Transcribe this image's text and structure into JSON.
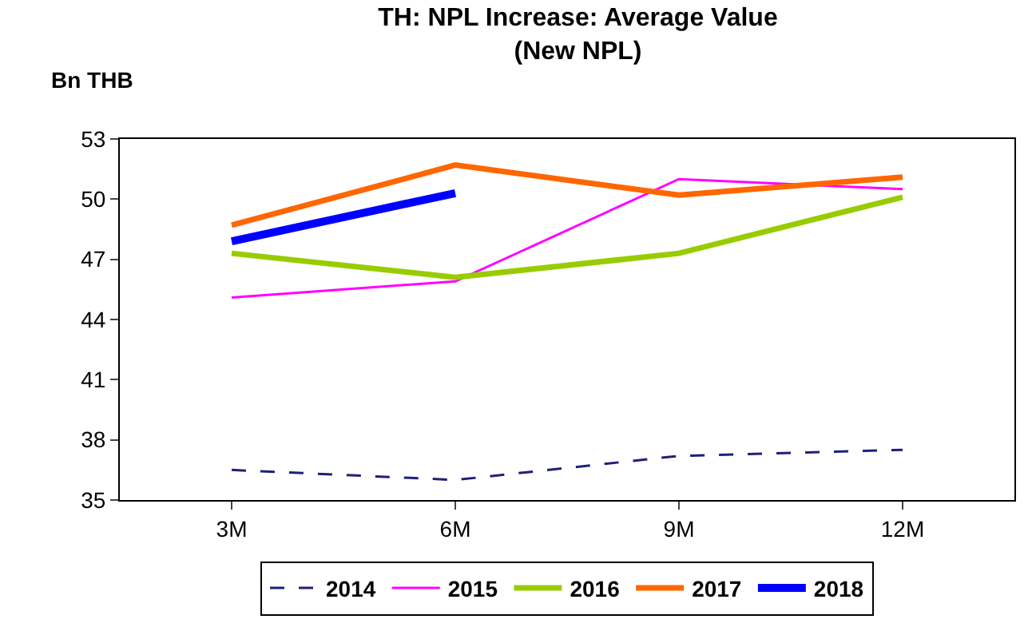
{
  "chart_data": {
    "type": "line",
    "title": "TH: NPL Increase: Average Value\n(New NPL)",
    "ylabel": "Bn THB",
    "categories": [
      "3M",
      "6M",
      "9M",
      "12M"
    ],
    "series": [
      {
        "name": "2014",
        "color": "#1f1f7a",
        "line_style": "dashed",
        "values": [
          36.5,
          36.0,
          37.2,
          37.5
        ]
      },
      {
        "name": "2015",
        "color": "#ff00ff",
        "values": [
          45.1,
          45.9,
          51.0,
          50.5
        ]
      },
      {
        "name": "2016",
        "color": "#99cc00",
        "values": [
          47.3,
          46.1,
          47.3,
          50.1
        ]
      },
      {
        "name": "2017",
        "color": "#ff6600",
        "values": [
          48.7,
          51.7,
          50.2,
          51.1
        ]
      },
      {
        "name": "2018",
        "color": "#0000ff",
        "values": [
          47.9,
          50.3,
          null,
          null
        ]
      }
    ],
    "ylim": [
      35,
      53
    ],
    "yticks": [
      35,
      38,
      41,
      44,
      47,
      50,
      53
    ],
    "legend": "bottom",
    "marker": "none",
    "line_style": "solid"
  }
}
